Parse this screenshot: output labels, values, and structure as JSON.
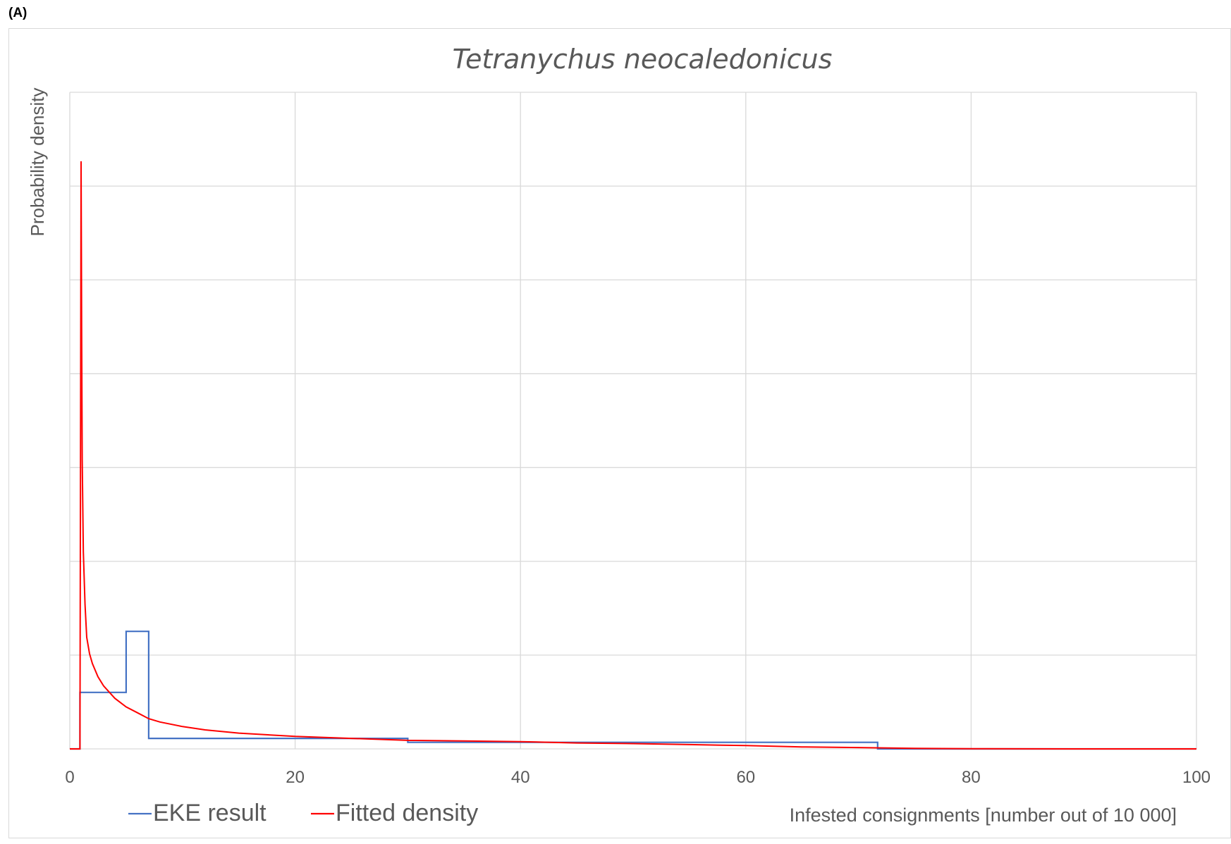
{
  "panel_label": "(A)",
  "chart_data": {
    "type": "line",
    "title": "Tetranychus neocaledonicus",
    "xlabel": "Infested consignments [number out of 10 000]",
    "ylabel": "Probability density",
    "xlim": [
      0,
      100
    ],
    "ylim": [
      0,
      1
    ],
    "x_ticks": [
      "0",
      "20",
      "40",
      "60",
      "80",
      "100"
    ],
    "y_tick_labels_shown": false,
    "grid": true,
    "legend_position": "bottom-left",
    "series": [
      {
        "name": "EKE result",
        "color": "#4472c4",
        "shape": "step",
        "x": [
          0,
          0.9,
          0.9,
          5,
          5,
          7,
          7,
          30,
          30,
          71.7,
          71.7,
          100
        ],
        "y": [
          0,
          0,
          0.086,
          0.086,
          0.179,
          0.179,
          0.016,
          0.016,
          0.01,
          0.01,
          0,
          0
        ]
      },
      {
        "name": "Fitted density",
        "color": "#ff0000",
        "shape": "line",
        "x": [
          0,
          0.9,
          1.0,
          1.05,
          1.1,
          1.2,
          1.35,
          1.5,
          1.75,
          2.0,
          2.5,
          3,
          4,
          5,
          6,
          7,
          8,
          10,
          12,
          15,
          20,
          25,
          30,
          35,
          40,
          45,
          50,
          55,
          60,
          65,
          70,
          75,
          80,
          85,
          90,
          100
        ],
        "y": [
          0,
          0,
          0.895,
          0.64,
          0.44,
          0.3,
          0.22,
          0.17,
          0.145,
          0.13,
          0.11,
          0.096,
          0.077,
          0.064,
          0.055,
          0.046,
          0.041,
          0.034,
          0.029,
          0.024,
          0.019,
          0.016,
          0.013,
          0.012,
          0.011,
          0.009,
          0.008,
          0.0065,
          0.005,
          0.003,
          0.002,
          0.0008,
          0.0003,
          0.0001,
          5e-05,
          0
        ]
      }
    ]
  }
}
